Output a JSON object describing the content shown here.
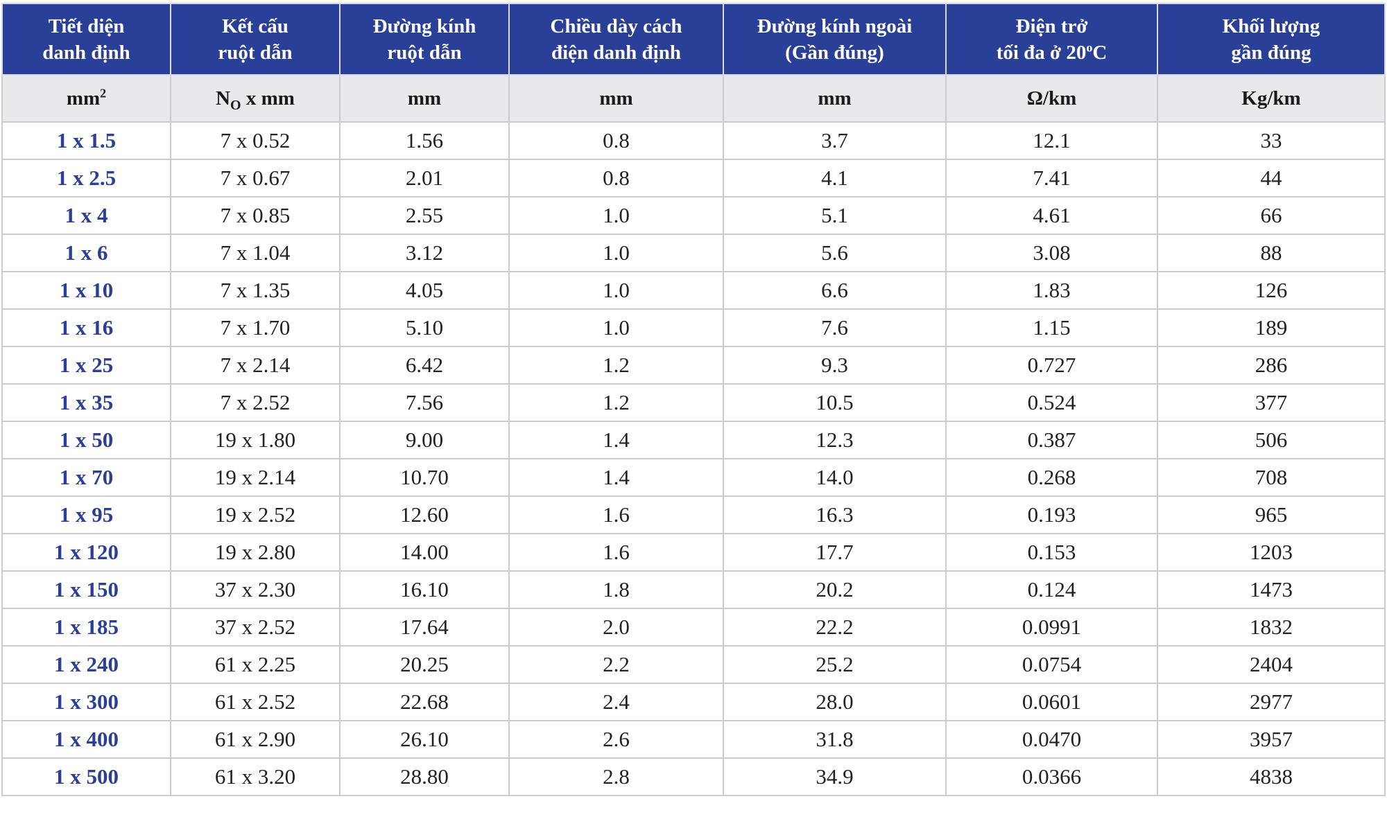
{
  "header": {
    "col1": [
      "Tiết diện",
      "danh định"
    ],
    "col2": [
      "Kết cấu",
      "ruột dẫn"
    ],
    "col3": [
      "Đường kính",
      "ruột dẫn"
    ],
    "col4": [
      "Chiều dày cách",
      "điện danh định"
    ],
    "col5": [
      "Đường kính ngoài",
      "(Gần đúng)"
    ],
    "col6": {
      "line1": "Điện trở",
      "line2_pre": "tối đa ở 20",
      "line2_sup": "o",
      "line2_post": "C"
    },
    "col7": [
      "Khối lượng",
      "gần đúng"
    ]
  },
  "units": {
    "col1": {
      "base": "mm",
      "sup": "2"
    },
    "col2": {
      "pre": "N",
      "sub": "O",
      "post": " x mm"
    },
    "col3": "mm",
    "col4": "mm",
    "col5": "mm",
    "col6": "Ω/km",
    "col7": "Kg/km"
  },
  "rows": [
    [
      "1 x 1.5",
      "7 x  0.52",
      "1.56",
      "0.8",
      "3.7",
      "12.1",
      "33"
    ],
    [
      "1 x 2.5",
      "7 x  0.67",
      "2.01",
      "0.8",
      "4.1",
      "7.41",
      "44"
    ],
    [
      "1 x 4",
      "7 x  0.85",
      "2.55",
      "1.0",
      "5.1",
      "4.61",
      "66"
    ],
    [
      "1 x 6",
      "7 x 1.04",
      "3.12",
      "1.0",
      "5.6",
      "3.08",
      "88"
    ],
    [
      "1 x 10",
      "7 x 1.35",
      "4.05",
      "1.0",
      "6.6",
      "1.83",
      "126"
    ],
    [
      "1 x 16",
      "7 x 1.70",
      "5.10",
      "1.0",
      "7.6",
      "1.15",
      "189"
    ],
    [
      "1 x 25",
      "7 x 2.14",
      "6.42",
      "1.2",
      "9.3",
      "0.727",
      "286"
    ],
    [
      "1 x 35",
      "7 x 2.52",
      "7.56",
      "1.2",
      "10.5",
      "0.524",
      "377"
    ],
    [
      "1 x 50",
      "19 x 1.80",
      "9.00",
      "1.4",
      "12.3",
      "0.387",
      "506"
    ],
    [
      "1 x 70",
      "19 x 2.14",
      "10.70",
      "1.4",
      "14.0",
      "0.268",
      "708"
    ],
    [
      "1 x 95",
      "19 x 2.52",
      "12.60",
      "1.6",
      "16.3",
      "0.193",
      "965"
    ],
    [
      "1 x 120",
      "19 x 2.80",
      "14.00",
      "1.6",
      "17.7",
      "0.153",
      "1203"
    ],
    [
      "1 x 150",
      "37 x 2.30",
      "16.10",
      "1.8",
      "20.2",
      "0.124",
      "1473"
    ],
    [
      "1 x 185",
      "37 x 2.52",
      "17.64",
      "2.0",
      "22.2",
      "0.0991",
      "1832"
    ],
    [
      "1 x 240",
      "61 x 2.25",
      "20.25",
      "2.2",
      "25.2",
      "0.0754",
      "2404"
    ],
    [
      "1 x 300",
      "61 x 2.52",
      "22.68",
      "2.4",
      "28.0",
      "0.0601",
      "2977"
    ],
    [
      "1 x 400",
      "61 x 2.90",
      "26.10",
      "2.6",
      "31.8",
      "0.0470",
      "3957"
    ],
    [
      "1 x 500",
      "61 x 3.20",
      "28.80",
      "2.8",
      "34.9",
      "0.0366",
      "4838"
    ]
  ]
}
